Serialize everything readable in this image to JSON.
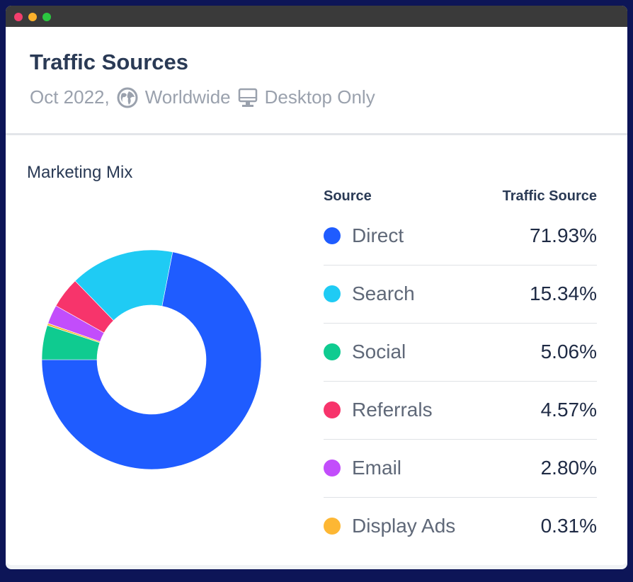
{
  "window": {
    "dots": [
      "#f23f6d",
      "#fbb12b",
      "#2bc840"
    ]
  },
  "header": {
    "title": "Traffic Sources",
    "date": "Oct 2022,",
    "region": "Worldwide",
    "device": "Desktop Only",
    "region_icon": "globe-icon",
    "device_icon": "desktop-icon"
  },
  "chart_data": {
    "type": "pie",
    "donut": true,
    "title": "Marketing Mix",
    "columns": [
      "Source",
      "Traffic Source"
    ],
    "series": [
      {
        "name": "Direct",
        "value": 71.93,
        "label": "71.93%",
        "color": "#1f5cff"
      },
      {
        "name": "Search",
        "value": 15.34,
        "label": "15.34%",
        "color": "#1fcbf4"
      },
      {
        "name": "Social",
        "value": 5.06,
        "label": "5.06%",
        "color": "#0fcb90"
      },
      {
        "name": "Referrals",
        "value": 4.57,
        "label": "4.57%",
        "color": "#f7346b"
      },
      {
        "name": "Email",
        "value": 2.8,
        "label": "2.80%",
        "color": "#c24dfb"
      },
      {
        "name": "Display Ads",
        "value": 0.31,
        "label": "0.31%",
        "color": "#fdb734"
      }
    ],
    "slice_order": [
      "Direct",
      "Search",
      "Referrals",
      "Email",
      "Display Ads",
      "Social"
    ]
  }
}
